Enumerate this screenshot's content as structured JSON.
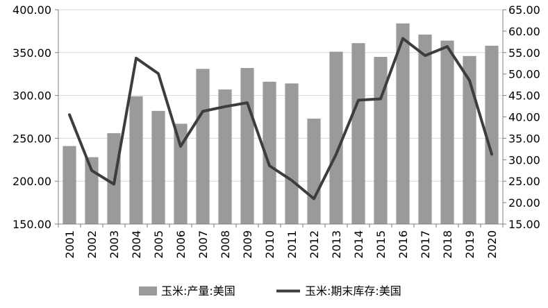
{
  "chart_data": {
    "type": "bar",
    "title": "",
    "xlabel": "",
    "ylabel": "",
    "categories": [
      "2001",
      "2002",
      "2003",
      "2004",
      "2005",
      "2006",
      "2007",
      "2008",
      "2009",
      "2010",
      "2011",
      "2012",
      "2013",
      "2014",
      "2015",
      "2016",
      "2017",
      "2018",
      "2019",
      "2020"
    ],
    "series": [
      {
        "name": "玉米:产量:美国",
        "type": "bar",
        "axis": "left",
        "color": "#9a9a9a",
        "values": [
          241,
          228,
          256,
          299,
          282,
          267,
          331,
          307,
          332,
          316,
          314,
          273,
          351,
          361,
          345,
          384,
          371,
          364,
          346,
          358
        ]
      },
      {
        "name": "玉米:期末库存:美国",
        "type": "line",
        "axis": "right",
        "color": "#3d3d3d",
        "values": [
          40.5,
          27.5,
          24.3,
          53.7,
          50.1,
          33.1,
          41.3,
          42.4,
          43.3,
          28.6,
          25.2,
          20.9,
          31.3,
          43.9,
          44.2,
          58.3,
          54.3,
          56.4,
          48.5,
          31.3
        ]
      }
    ],
    "y_left": {
      "ylim": [
        150,
        400
      ],
      "ticks": [
        "150.00",
        "200.00",
        "250.00",
        "300.00",
        "350.00",
        "400.00"
      ]
    },
    "y_right": {
      "ylim": [
        15,
        65
      ],
      "ticks": [
        "15.00",
        "20.00",
        "25.00",
        "30.00",
        "35.00",
        "40.00",
        "45.00",
        "50.00",
        "55.00",
        "60.00",
        "65.00"
      ]
    },
    "grid": true,
    "legend": "bottom-center"
  }
}
